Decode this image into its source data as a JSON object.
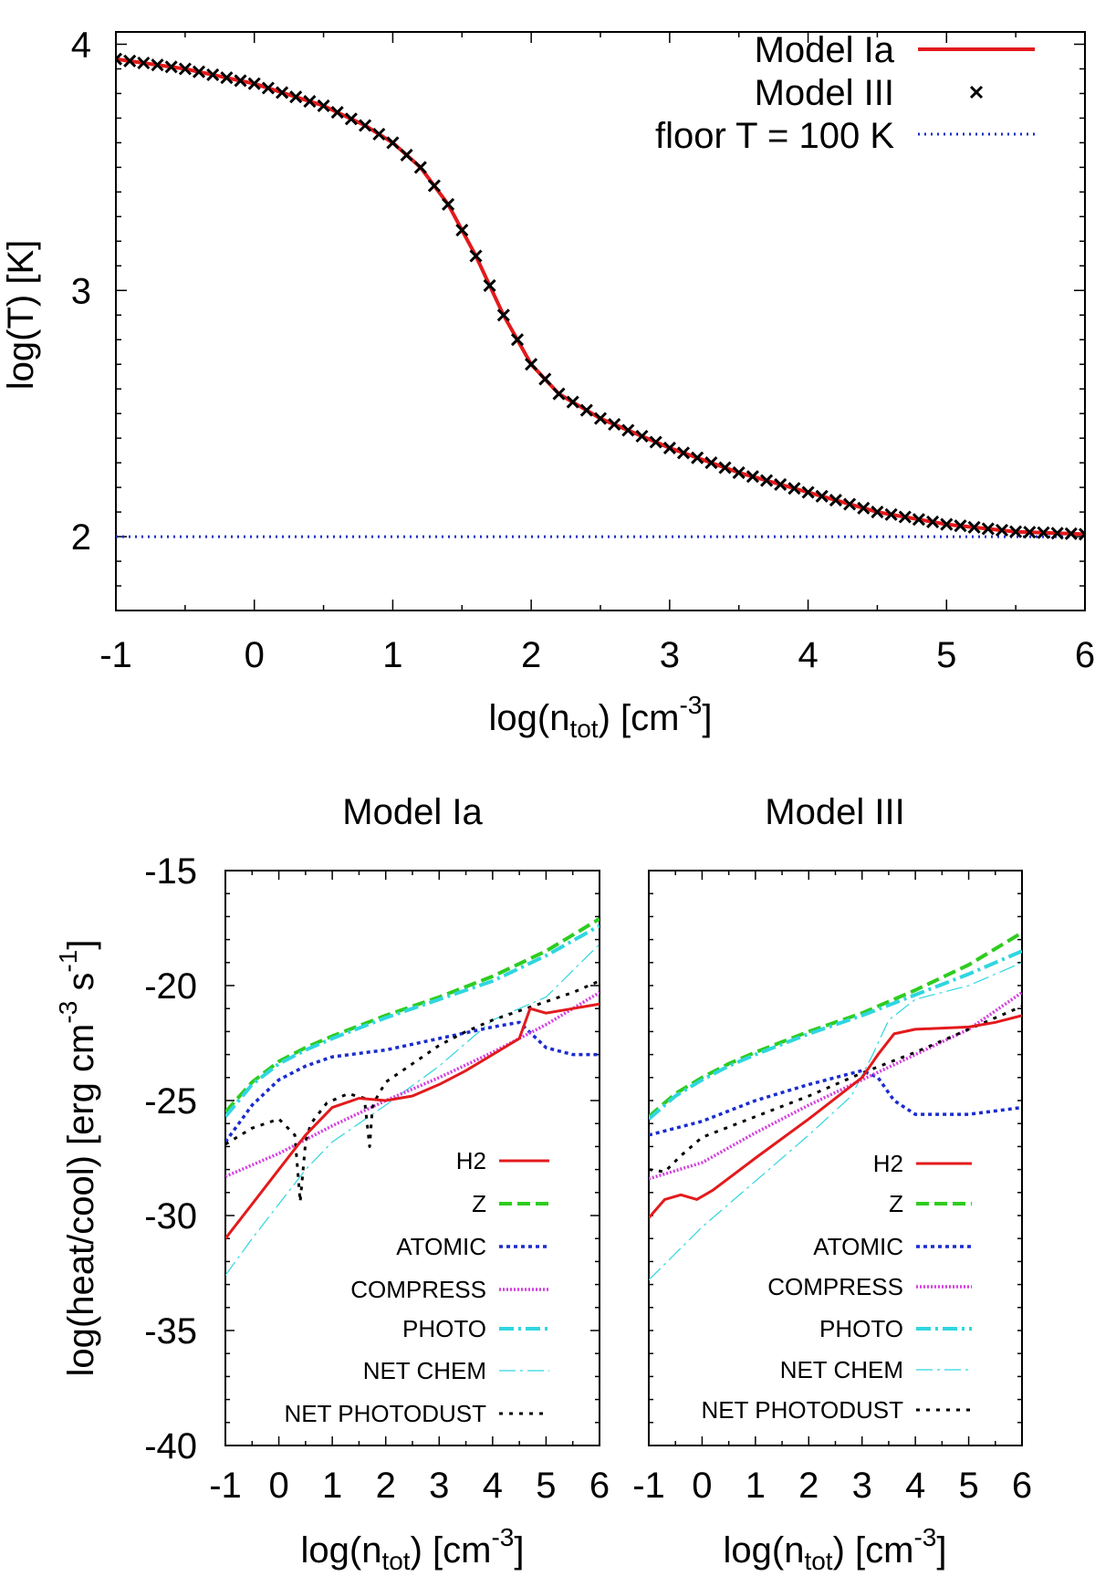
{
  "colors": {
    "h2": "#e31a1c",
    "z": "#2ecc1f",
    "atomic": "#1a2ccf",
    "compress": "#d43fe0",
    "photo": "#2fd6e0",
    "net_chem": "#2fd6e0",
    "net_photodust": "#000000",
    "model_ia": "#e31a1c",
    "model_iii": "#000000",
    "floor": "#1a2ccf"
  },
  "chart_data": [
    {
      "type": "line",
      "id": "top",
      "title": "",
      "xlabel": "log(n",
      "xlabel_sub": "tot",
      "xlabel_tail": ") [cm",
      "xlabel_sup": "-3",
      "xlabel_end": "]",
      "ylabel": "log(T) [K]",
      "xlim": [
        -1,
        6
      ],
      "ylim": [
        1.7,
        4.05
      ],
      "xticks": [
        -1,
        0,
        1,
        2,
        3,
        4,
        5,
        6
      ],
      "xtick_labels": [
        "-1",
        "0",
        "1",
        "2",
        "3",
        "4",
        "5",
        "6"
      ],
      "yticks": [
        2,
        3,
        4
      ],
      "ytick_labels": [
        "2",
        "3",
        "4"
      ],
      "legend": [
        "Model Ia",
        "Model III",
        "floor T = 100 K"
      ],
      "series": [
        {
          "name": "Model Ia",
          "style": "line",
          "x": [
            -1,
            -0.5,
            0,
            0.5,
            0.8,
            1,
            1.2,
            1.4,
            1.6,
            1.8,
            2,
            2.2,
            2.5,
            3,
            3.5,
            4,
            4.5,
            5,
            5.5,
            6
          ],
          "y": [
            3.94,
            3.9,
            3.84,
            3.75,
            3.67,
            3.6,
            3.5,
            3.35,
            3.14,
            2.9,
            2.7,
            2.58,
            2.48,
            2.36,
            2.26,
            2.18,
            2.1,
            2.05,
            2.02,
            2.01
          ]
        },
        {
          "name": "Model III",
          "style": "points",
          "x": [
            -1,
            -0.5,
            0,
            0.5,
            0.8,
            1,
            1.2,
            1.4,
            1.6,
            1.8,
            2,
            2.2,
            2.5,
            3,
            3.5,
            4,
            4.5,
            5,
            5.5,
            6
          ],
          "y": [
            3.94,
            3.9,
            3.84,
            3.75,
            3.67,
            3.6,
            3.5,
            3.35,
            3.14,
            2.9,
            2.7,
            2.58,
            2.48,
            2.36,
            2.26,
            2.18,
            2.1,
            2.05,
            2.02,
            2.01
          ]
        },
        {
          "name": "floor T = 100 K",
          "style": "dotted",
          "x": [
            -1,
            6
          ],
          "y": [
            2,
            2
          ]
        }
      ]
    },
    {
      "type": "line",
      "id": "ia",
      "title": "Model Ia",
      "xlabel": "log(n",
      "xlabel_sub": "tot",
      "xlabel_tail": ") [cm",
      "xlabel_sup": "-3",
      "xlabel_end": "]",
      "ylabel": "log(heat/cool) [erg cm",
      "ylabel_sup1": "-3",
      "ylabel_mid": " s",
      "ylabel_sup2": "-1",
      "ylabel_end": "]",
      "xlim": [
        -1,
        6
      ],
      "ylim": [
        -40,
        -15
      ],
      "xticks": [
        -1,
        0,
        1,
        2,
        3,
        4,
        5,
        6
      ],
      "xtick_labels": [
        "-1",
        "0",
        "1",
        "2",
        "3",
        "4",
        "5",
        "6"
      ],
      "yticks": [
        -40,
        -35,
        -30,
        -25,
        -20,
        -15
      ],
      "ytick_labels": [
        "-40",
        "-35",
        "-30",
        "-25",
        "-20",
        "-15"
      ],
      "legend": [
        "H2",
        "Z",
        "ATOMIC",
        "COMPRESS",
        "PHOTO",
        "NET CHEM",
        "NET PHOTODUST"
      ],
      "series": [
        {
          "name": "H2",
          "x": [
            -1,
            -0.5,
            0,
            0.5,
            1,
            1.5,
            2,
            2.5,
            3,
            3.5,
            4,
            4.5,
            4.7,
            5,
            5.5,
            6
          ],
          "y": [
            -31,
            -29.5,
            -28,
            -26.5,
            -25.3,
            -24.9,
            -25,
            -24.8,
            -24.3,
            -23.7,
            -23,
            -22.3,
            -21,
            -21.2,
            -21,
            -20.8
          ]
        },
        {
          "name": "Z",
          "x": [
            -1,
            -0.5,
            0,
            0.5,
            1,
            2,
            3,
            4,
            5,
            6
          ],
          "y": [
            -25.5,
            -24.2,
            -23.3,
            -22.7,
            -22.2,
            -21.3,
            -20.5,
            -19.6,
            -18.5,
            -17.1
          ]
        },
        {
          "name": "ATOMIC",
          "x": [
            -1,
            -0.5,
            0,
            0.5,
            1,
            2,
            3,
            4,
            4.5,
            5,
            5.5,
            6
          ],
          "y": [
            -26.8,
            -25.2,
            -24.1,
            -23.5,
            -23.1,
            -22.8,
            -22.3,
            -21.8,
            -21.6,
            -22.7,
            -23,
            -23
          ]
        },
        {
          "name": "COMPRESS",
          "x": [
            -1,
            0,
            1,
            2,
            3,
            4,
            5,
            6
          ],
          "y": [
            -28.3,
            -27.3,
            -26.1,
            -25,
            -24,
            -22.9,
            -21.7,
            -20.3
          ]
        },
        {
          "name": "PHOTO",
          "x": [
            -1,
            -0.5,
            0,
            0.5,
            1,
            2,
            3,
            4,
            5,
            6
          ],
          "y": [
            -25.7,
            -24.3,
            -23.4,
            -22.8,
            -22.3,
            -21.4,
            -20.6,
            -19.8,
            -18.7,
            -17.4
          ]
        },
        {
          "name": "NET CHEM",
          "x": [
            -1,
            -0.5,
            0,
            0.5,
            1,
            2,
            3,
            4,
            5,
            6
          ],
          "y": [
            -32.6,
            -31,
            -29.5,
            -28,
            -26.8,
            -25.2,
            -23.5,
            -21.5,
            -20.5,
            -18.2
          ]
        },
        {
          "name": "NET PHOTODUST",
          "x": [
            -1,
            -0.5,
            0,
            0.3,
            0.4,
            0.5,
            0.6,
            0.9,
            1.3,
            1.6,
            1.7,
            1.75,
            1.8,
            2,
            2.5,
            3,
            3.5,
            4,
            4.5,
            5,
            5.5,
            6
          ],
          "y": [
            -26.9,
            -26.2,
            -25.8,
            -26.5,
            -29.4,
            -26.8,
            -26,
            -25.1,
            -24.7,
            -24.9,
            -27,
            -25.3,
            -25,
            -24.2,
            -23.4,
            -22.6,
            -22,
            -21.5,
            -21.1,
            -20.7,
            -20.3,
            -19.8
          ]
        }
      ]
    },
    {
      "type": "line",
      "id": "iii",
      "title": "Model III",
      "xlabel": "log(n",
      "xlabel_sub": "tot",
      "xlabel_tail": ") [cm",
      "xlabel_sup": "-3",
      "xlabel_end": "]",
      "xlim": [
        -1,
        6
      ],
      "ylim": [
        -40,
        -15
      ],
      "xticks": [
        -1,
        0,
        1,
        2,
        3,
        4,
        5,
        6
      ],
      "xtick_labels": [
        "-1",
        "0",
        "1",
        "2",
        "3",
        "4",
        "5",
        "6"
      ],
      "legend": [
        "H2",
        "Z",
        "ATOMIC",
        "COMPRESS",
        "PHOTO",
        "NET CHEM",
        "NET PHOTODUST"
      ],
      "series": [
        {
          "name": "H2",
          "x": [
            -1,
            -0.7,
            -0.4,
            -0.1,
            0.2,
            1,
            2,
            3,
            3.3,
            3.6,
            4,
            5,
            5.5,
            6
          ],
          "y": [
            -30.1,
            -29.3,
            -29.1,
            -29.3,
            -28.9,
            -27.5,
            -25.8,
            -24,
            -23,
            -22.1,
            -21.9,
            -21.8,
            -21.6,
            -21.3
          ]
        },
        {
          "name": "Z",
          "x": [
            -1,
            -0.5,
            0,
            0.5,
            1,
            2,
            3,
            4,
            5,
            6
          ],
          "y": [
            -25.7,
            -24.7,
            -24,
            -23.4,
            -22.9,
            -22,
            -21.2,
            -20.2,
            -19.1,
            -17.7
          ]
        },
        {
          "name": "ATOMIC",
          "x": [
            -1,
            0,
            1,
            2,
            3,
            3.3,
            3.6,
            4,
            5,
            6
          ],
          "y": [
            -26.5,
            -25.9,
            -25,
            -24.3,
            -23.7,
            -24,
            -25,
            -25.6,
            -25.6,
            -25.3
          ]
        },
        {
          "name": "COMPRESS",
          "x": [
            -1,
            0,
            1,
            2,
            3,
            4,
            5,
            6
          ],
          "y": [
            -28.4,
            -27.7,
            -26.4,
            -25.2,
            -24.1,
            -23,
            -21.9,
            -20.3
          ]
        },
        {
          "name": "PHOTO",
          "x": [
            -1,
            -0.5,
            0,
            0.5,
            1,
            2,
            3,
            4,
            5,
            6
          ],
          "y": [
            -25.8,
            -24.8,
            -24.1,
            -23.5,
            -23,
            -22.1,
            -21.3,
            -20.4,
            -19.5,
            -18.5
          ]
        },
        {
          "name": "NET CHEM",
          "x": [
            -1,
            0,
            1,
            2,
            2.8,
            3.2,
            3.5,
            4,
            5,
            6
          ],
          "y": [
            -32.8,
            -30.5,
            -28.5,
            -26.5,
            -24.8,
            -23,
            -21.5,
            -20.6,
            -20,
            -19
          ]
        },
        {
          "name": "NET PHOTODUST",
          "x": [
            -1,
            -0.7,
            -0.4,
            0,
            1,
            2,
            3,
            4,
            5,
            6
          ],
          "y": [
            -28,
            -28.1,
            -27.4,
            -26.6,
            -25.7,
            -24.8,
            -23.8,
            -22.9,
            -21.9,
            -20.9
          ]
        }
      ]
    }
  ]
}
